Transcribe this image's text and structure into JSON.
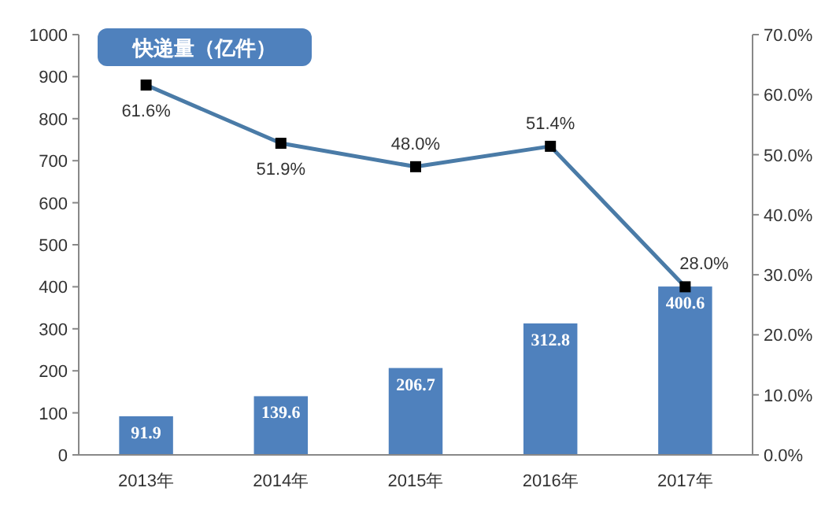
{
  "chart_data": {
    "type": "bar",
    "title": "快递量（亿件）",
    "categories": [
      "2013年",
      "2014年",
      "2015年",
      "2016年",
      "2017年"
    ],
    "series": [
      {
        "color": "#4f81bd",
        "values": [
          91.9,
          139.6,
          206.7,
          312.8,
          400.6
        ],
        "value_labels": [
          "91.9",
          "139.6",
          "206.7",
          "312.8",
          "400.6"
        ]
      },
      {
        "type": "line",
        "axis": "y2",
        "color": "#4a7ba7",
        "marker": "square",
        "values": [
          61.6,
          51.9,
          48.0,
          51.4,
          28.0
        ],
        "value_labels": [
          "61.6%",
          "51.9%",
          "48.0%",
          "51.4%",
          "28.0%"
        ]
      }
    ],
    "ylim": [
      0,
      1000
    ],
    "yticks": [
      0,
      100,
      200,
      300,
      400,
      500,
      600,
      700,
      800,
      900,
      1000
    ],
    "y2lim": [
      0,
      70
    ],
    "y2ticks": [
      {
        "value": 0,
        "label": "0.0%"
      },
      {
        "value": 10,
        "label": "10.0%"
      },
      {
        "value": 20,
        "label": "20.0%"
      },
      {
        "value": 30,
        "label": "30.0%"
      },
      {
        "value": 40,
        "label": "40.0%"
      },
      {
        "value": 50,
        "label": "50.0%"
      },
      {
        "value": 60,
        "label": "60.0%"
      },
      {
        "value": 70,
        "label": "70.0%"
      }
    ],
    "grid": false
  }
}
